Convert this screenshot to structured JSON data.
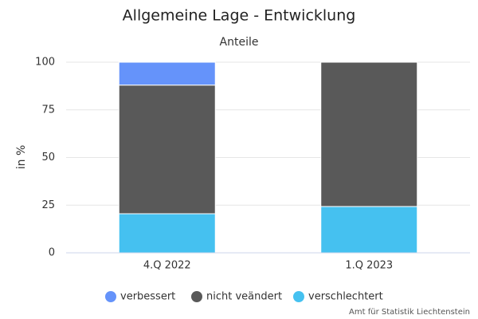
{
  "chart_data": {
    "type": "stacked_bar",
    "title": "Allgemeine Lage - Entwicklung",
    "subtitle": "Anteile",
    "y_label": "in %",
    "credit": "Amt für Statistik Liechtenstein",
    "categories": [
      "4.Q 2022",
      "1.Q 2023"
    ],
    "series": [
      {
        "name": "verbessert",
        "color": "#6593fa",
        "values": [
          12,
          0
        ]
      },
      {
        "name": "nicht veändert",
        "color": "#595959",
        "values": [
          67.5,
          75.7
        ]
      },
      {
        "name": "verschlechtert",
        "color": "#45c1f0",
        "values": [
          20.5,
          24.3
        ]
      }
    ],
    "ylim": [
      0,
      100
    ],
    "yticks": [
      0,
      25,
      50,
      75,
      100
    ],
    "grid": true
  }
}
